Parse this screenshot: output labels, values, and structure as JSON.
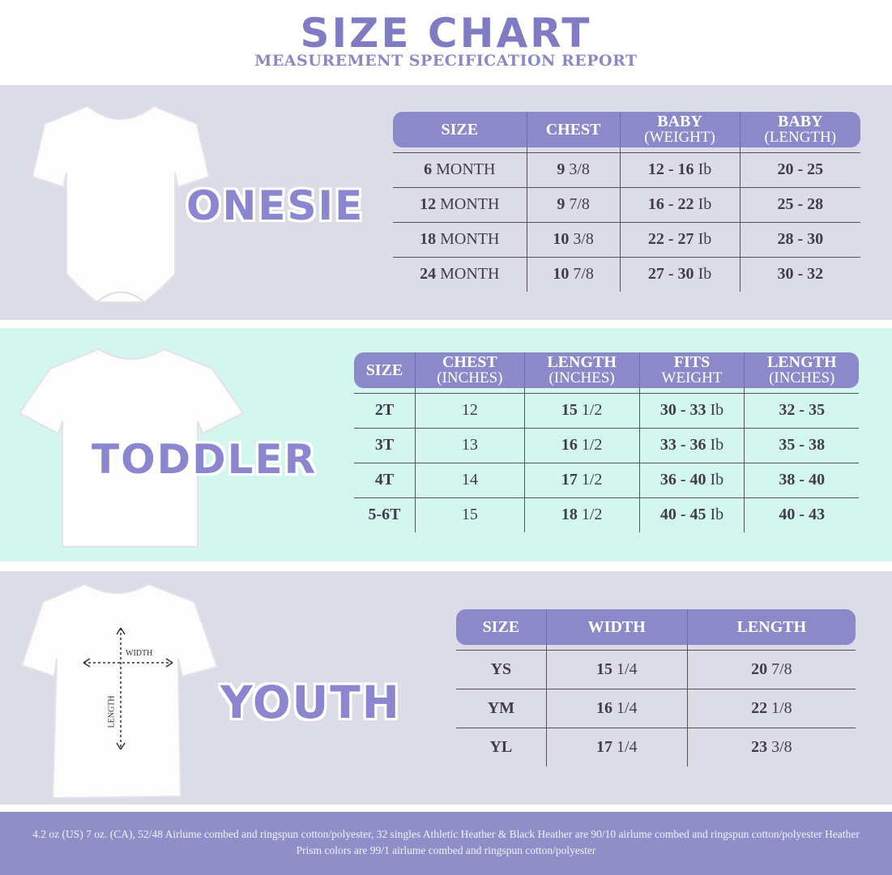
{
  "header": {
    "title": "SIZE CHART",
    "subtitle": "MEASUREMENT SPECIFICATION REPORT"
  },
  "colors": {
    "accent": "#8c89cb",
    "title": "#7f7cc4",
    "section_gray": "#dcdce8",
    "section_mint": "#d3f7ee",
    "footer": "#8f8ec9"
  },
  "onesie": {
    "label": "ONESIE",
    "headers": [
      [
        "SIZE",
        ""
      ],
      [
        "CHEST",
        ""
      ],
      [
        "BABY",
        "(WEIGHT)"
      ],
      [
        "BABY",
        "(LENGTH)"
      ]
    ],
    "rows": [
      [
        [
          "6",
          "MONTH"
        ],
        [
          "9",
          "3/8"
        ],
        [
          "12 - 16",
          "Ib"
        ],
        [
          "20 - 25",
          ""
        ]
      ],
      [
        [
          "12",
          "MONTH"
        ],
        [
          "9",
          "7/8"
        ],
        [
          "16 - 22",
          "Ib"
        ],
        [
          "25 - 28",
          ""
        ]
      ],
      [
        [
          "18",
          "MONTH"
        ],
        [
          "10",
          "3/8"
        ],
        [
          "22 - 27",
          "Ib"
        ],
        [
          "28 - 30",
          ""
        ]
      ],
      [
        [
          "24",
          "MONTH"
        ],
        [
          "10",
          "7/8"
        ],
        [
          "27 - 30",
          "Ib"
        ],
        [
          "30 - 32",
          ""
        ]
      ]
    ]
  },
  "toddler": {
    "label": "TODDLER",
    "headers": [
      [
        "SIZE",
        ""
      ],
      [
        "CHEST",
        "(INCHES)"
      ],
      [
        "LENGTH",
        "(INCHES)"
      ],
      [
        "FITS",
        "WEIGHT"
      ],
      [
        "LENGTH",
        "(INCHES)"
      ]
    ],
    "rows": [
      [
        [
          "2T",
          ""
        ],
        [
          "",
          "12"
        ],
        [
          "15",
          "1/2"
        ],
        [
          "30 - 33",
          "Ib"
        ],
        [
          "32 - 35",
          ""
        ]
      ],
      [
        [
          "3T",
          ""
        ],
        [
          "",
          "13"
        ],
        [
          "16",
          "1/2"
        ],
        [
          "33 - 36",
          "Ib"
        ],
        [
          "35 - 38",
          ""
        ]
      ],
      [
        [
          "4T",
          ""
        ],
        [
          "",
          "14"
        ],
        [
          "17",
          "1/2"
        ],
        [
          "36 - 40",
          "Ib"
        ],
        [
          "38 - 40",
          ""
        ]
      ],
      [
        [
          "5-6T",
          ""
        ],
        [
          "",
          "15"
        ],
        [
          "18",
          "1/2"
        ],
        [
          "40 - 45",
          "Ib"
        ],
        [
          "40 - 43",
          ""
        ]
      ]
    ]
  },
  "youth": {
    "label": "YOUTH",
    "diagram": {
      "width_label": "WIDTH",
      "length_label": "LENGTH"
    },
    "headers": [
      [
        "SIZE",
        ""
      ],
      [
        "WIDTH",
        ""
      ],
      [
        "LENGTH",
        ""
      ]
    ],
    "rows": [
      [
        [
          "YS",
          ""
        ],
        [
          "15",
          "1/4"
        ],
        [
          "20",
          "7/8"
        ]
      ],
      [
        [
          "YM",
          ""
        ],
        [
          "16",
          "1/4"
        ],
        [
          "22",
          "1/8"
        ]
      ],
      [
        [
          "YL",
          ""
        ],
        [
          "17",
          "1/4"
        ],
        [
          "23",
          "3/8"
        ]
      ]
    ]
  },
  "footer": {
    "text": "4.2 oz (US) 7 oz. (CA), 52/48 Airlume combed and ringspun cotton/polyester, 32 singles Athletic Heather & Black Heather are 90/10 airlume combed and ringspun cotton/polyester Heather Prism colors are 99/1 airlume combed and ringspun cotton/polyester"
  }
}
